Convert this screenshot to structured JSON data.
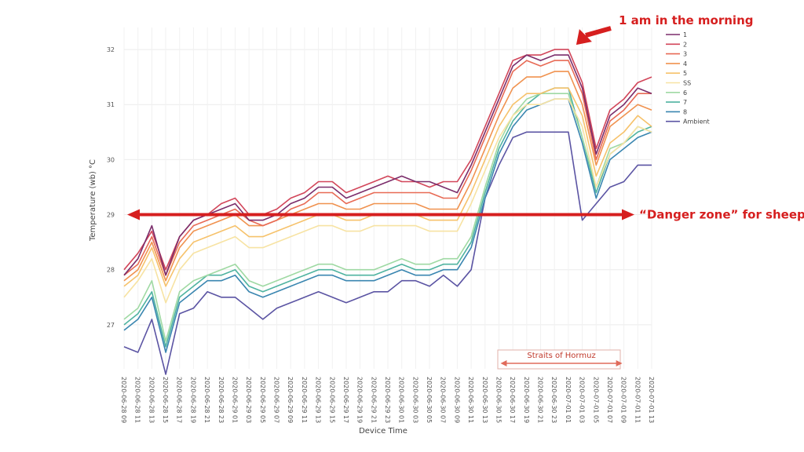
{
  "chart_data": {
    "type": "line",
    "xlabel": "Device Time",
    "ylabel": "Temperature (wb) °C",
    "ylim": [
      26.2,
      32.4
    ],
    "y_ticks": [
      27,
      28,
      29,
      30,
      31,
      32
    ],
    "grid": true,
    "legend_position": "top-right",
    "x_ticks": [
      "2020-06-28 09",
      "2020-06-28 11",
      "2020-06-28 13",
      "2020-06-28 15",
      "2020-06-28 17",
      "2020-06-28 19",
      "2020-06-28 21",
      "2020-06-28 23",
      "2020-06-29 01",
      "2020-06-29 03",
      "2020-06-29 05",
      "2020-06-29 07",
      "2020-06-29 09",
      "2020-06-29 11",
      "2020-06-29 13",
      "2020-06-29 15",
      "2020-06-29 17",
      "2020-06-29 19",
      "2020-06-29 21",
      "2020-06-29 23",
      "2020-06-30 01",
      "2020-06-30 03",
      "2020-06-30 05",
      "2020-06-30 07",
      "2020-06-30 09",
      "2020-06-30 11",
      "2020-06-30 13",
      "2020-06-30 15",
      "2020-06-30 17",
      "2020-06-30 19",
      "2020-06-30 21",
      "2020-06-30 23",
      "2020-07-01 01",
      "2020-07-01 03",
      "2020-07-01 05",
      "2020-07-01 07",
      "2020-07-01 09",
      "2020-07-01 11",
      "2020-07-01 13"
    ],
    "x": [
      "2020-06-28 09",
      "2020-06-28 11",
      "2020-06-28 13",
      "2020-06-28 15",
      "2020-06-28 17",
      "2020-06-28 19",
      "2020-06-28 21",
      "2020-06-28 23",
      "2020-06-29 01",
      "2020-06-29 03",
      "2020-06-29 05",
      "2020-06-29 07",
      "2020-06-29 09",
      "2020-06-29 11",
      "2020-06-29 13",
      "2020-06-29 15",
      "2020-06-29 17",
      "2020-06-29 19",
      "2020-06-29 21",
      "2020-06-29 23",
      "2020-06-30 01",
      "2020-06-30 03",
      "2020-06-30 05",
      "2020-06-30 07",
      "2020-06-30 09",
      "2020-06-30 11",
      "2020-06-30 13",
      "2020-06-30 15",
      "2020-06-30 17",
      "2020-06-30 19",
      "2020-06-30 21",
      "2020-06-30 23",
      "2020-07-01 01",
      "2020-07-01 03",
      "2020-07-01 05",
      "2020-07-01 07",
      "2020-07-01 09",
      "2020-07-01 11",
      "2020-07-01 13"
    ],
    "series": [
      {
        "name": "1",
        "color": "#7b2d6b",
        "values": [
          27.9,
          28.2,
          28.8,
          27.9,
          28.6,
          28.9,
          29.0,
          29.1,
          29.2,
          28.9,
          28.9,
          29.0,
          29.2,
          29.3,
          29.5,
          29.5,
          29.3,
          29.4,
          29.5,
          29.6,
          29.7,
          29.6,
          29.6,
          29.5,
          29.4,
          29.9,
          30.5,
          31.1,
          31.7,
          31.9,
          31.8,
          31.9,
          31.9,
          31.3,
          30.1,
          30.8,
          31.0,
          31.3,
          31.2
        ]
      },
      {
        "name": "2",
        "color": "#d2465a",
        "values": [
          28.0,
          28.3,
          28.7,
          28.0,
          28.6,
          28.9,
          29.0,
          29.2,
          29.3,
          29.0,
          29.0,
          29.1,
          29.3,
          29.4,
          29.6,
          29.6,
          29.4,
          29.5,
          29.6,
          29.7,
          29.6,
          29.6,
          29.5,
          29.6,
          29.6,
          30.0,
          30.6,
          31.2,
          31.8,
          31.9,
          31.9,
          32.0,
          32.0,
          31.4,
          30.2,
          30.9,
          31.1,
          31.4,
          31.5
        ]
      },
      {
        "name": "3",
        "color": "#e86a55",
        "values": [
          27.9,
          28.1,
          28.6,
          27.9,
          28.5,
          28.8,
          28.9,
          29.0,
          29.1,
          28.9,
          28.8,
          28.9,
          29.1,
          29.2,
          29.4,
          29.4,
          29.2,
          29.3,
          29.4,
          29.4,
          29.4,
          29.4,
          29.4,
          29.3,
          29.3,
          29.8,
          30.4,
          31.0,
          31.6,
          31.8,
          31.7,
          31.8,
          31.8,
          31.2,
          30.0,
          30.7,
          30.9,
          31.2,
          31.2
        ]
      },
      {
        "name": "4",
        "color": "#f0924f",
        "values": [
          27.8,
          28.0,
          28.5,
          27.8,
          28.4,
          28.7,
          28.8,
          28.9,
          29.0,
          28.8,
          28.8,
          28.9,
          29.0,
          29.1,
          29.2,
          29.2,
          29.1,
          29.1,
          29.2,
          29.2,
          29.2,
          29.2,
          29.1,
          29.1,
          29.1,
          29.6,
          30.2,
          30.8,
          31.3,
          31.5,
          31.5,
          31.6,
          31.6,
          31.0,
          29.9,
          30.6,
          30.8,
          31.0,
          30.9
        ]
      },
      {
        "name": "5",
        "color": "#f6c26b",
        "values": [
          27.7,
          27.9,
          28.4,
          27.7,
          28.2,
          28.5,
          28.6,
          28.7,
          28.8,
          28.6,
          28.6,
          28.7,
          28.8,
          28.9,
          29.0,
          29.0,
          28.9,
          28.9,
          29.0,
          29.0,
          29.0,
          29.0,
          28.9,
          28.9,
          28.9,
          29.4,
          30.0,
          30.6,
          31.0,
          31.2,
          31.2,
          31.3,
          31.3,
          30.8,
          29.7,
          30.3,
          30.5,
          30.8,
          30.6
        ]
      },
      {
        "name": "SS",
        "color": "#f7e3a3",
        "values": [
          27.5,
          27.8,
          28.2,
          27.4,
          28.0,
          28.3,
          28.4,
          28.5,
          28.6,
          28.4,
          28.4,
          28.5,
          28.6,
          28.7,
          28.8,
          28.8,
          28.7,
          28.7,
          28.8,
          28.8,
          28.8,
          28.8,
          28.7,
          28.7,
          28.7,
          29.2,
          29.8,
          30.4,
          30.8,
          31.0,
          31.0,
          31.1,
          31.1,
          30.6,
          29.5,
          30.1,
          30.3,
          30.6,
          30.5
        ]
      },
      {
        "name": "6",
        "color": "#9fd9a3",
        "values": [
          27.1,
          27.3,
          27.8,
          26.7,
          27.6,
          27.8,
          27.9,
          28.0,
          28.1,
          27.8,
          27.7,
          27.8,
          27.9,
          28.0,
          28.1,
          28.1,
          28.0,
          28.0,
          28.0,
          28.1,
          28.2,
          28.1,
          28.1,
          28.2,
          28.2,
          28.6,
          29.5,
          30.3,
          30.8,
          31.1,
          31.2,
          31.2,
          31.2,
          30.4,
          29.5,
          30.2,
          30.3,
          30.6,
          30.5
        ]
      },
      {
        "name": "7",
        "color": "#4fb3a0",
        "values": [
          27.0,
          27.2,
          27.6,
          26.6,
          27.5,
          27.7,
          27.9,
          27.9,
          28.0,
          27.7,
          27.6,
          27.7,
          27.8,
          27.9,
          28.0,
          28.0,
          27.9,
          27.9,
          27.9,
          28.0,
          28.1,
          28.0,
          28.0,
          28.1,
          28.1,
          28.5,
          29.4,
          30.2,
          30.7,
          31.0,
          31.2,
          31.3,
          31.3,
          30.4,
          29.4,
          30.1,
          30.3,
          30.5,
          30.6
        ]
      },
      {
        "name": "8",
        "color": "#3a86b0",
        "values": [
          26.9,
          27.1,
          27.5,
          26.5,
          27.4,
          27.6,
          27.8,
          27.8,
          27.9,
          27.6,
          27.5,
          27.6,
          27.7,
          27.8,
          27.9,
          27.9,
          27.8,
          27.8,
          27.8,
          27.9,
          28.0,
          27.9,
          27.9,
          28.0,
          28.0,
          28.4,
          29.3,
          30.1,
          30.6,
          30.9,
          31.0,
          31.1,
          31.1,
          30.3,
          29.3,
          30.0,
          30.2,
          30.4,
          30.5
        ]
      },
      {
        "name": "Ambient",
        "color": "#5b54a3",
        "values": [
          26.6,
          26.5,
          27.1,
          26.1,
          27.2,
          27.3,
          27.6,
          27.5,
          27.5,
          27.3,
          27.1,
          27.3,
          27.4,
          27.5,
          27.6,
          27.5,
          27.4,
          27.5,
          27.6,
          27.6,
          27.8,
          27.8,
          27.7,
          27.9,
          27.7,
          28.0,
          29.3,
          29.9,
          30.4,
          30.5,
          30.5,
          30.5,
          30.5,
          28.9,
          29.2,
          29.5,
          29.6,
          29.9,
          29.9
        ]
      }
    ],
    "annotations": {
      "morning": {
        "text": "1 am in the morning",
        "x": "2020-07-01 01",
        "y": 32.0
      },
      "danger": {
        "text": "“Danger zone” for sheep",
        "y": 29.0
      },
      "hormuz": {
        "text": "Straits of Hormuz",
        "x_start": "2020-06-30 15",
        "x_end": "2020-07-01 09"
      }
    },
    "annotation_color": "#d61f1f"
  }
}
